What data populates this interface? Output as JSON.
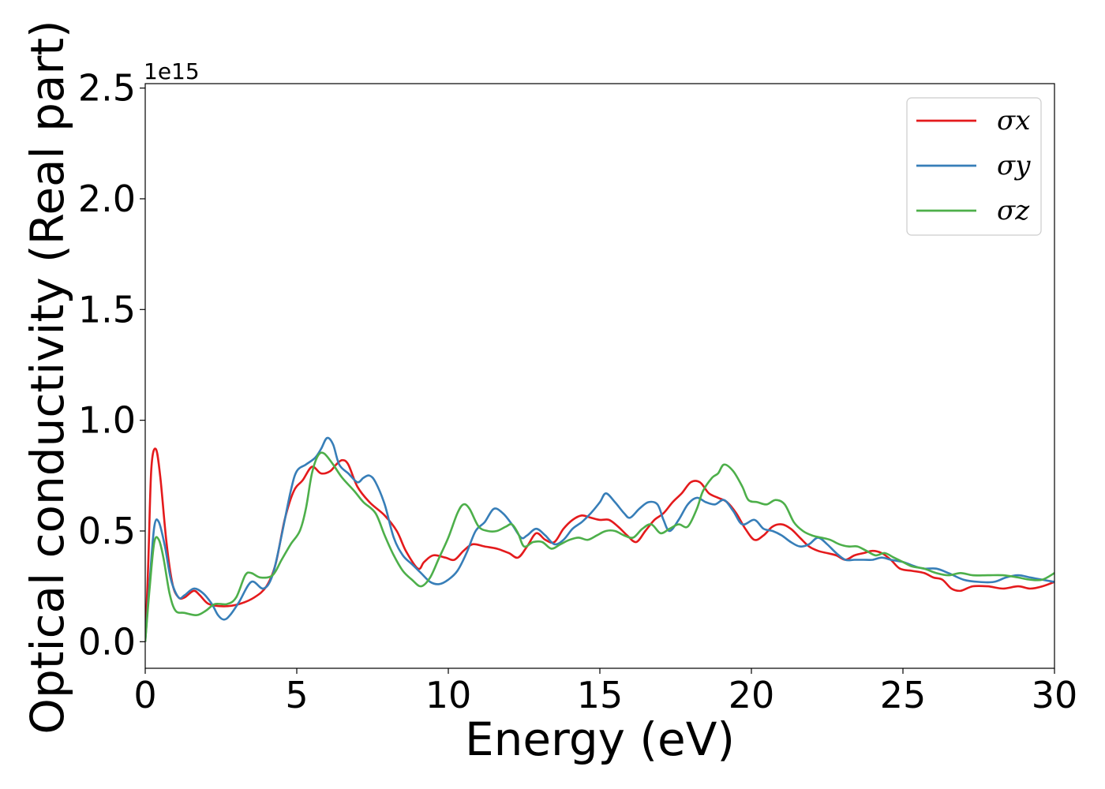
{
  "chart_data": {
    "type": "line",
    "xlabel": "Energy (eV)",
    "ylabel": "Optical conductivity (Real part)",
    "y_offset_label": "1e15",
    "xlim": [
      0,
      30
    ],
    "ylim": [
      -0.12,
      2.52
    ],
    "x_ticks": [
      0,
      5,
      10,
      15,
      20,
      25,
      30
    ],
    "x_tick_labels": [
      "0",
      "5",
      "10",
      "15",
      "20",
      "25",
      "30"
    ],
    "y_ticks": [
      0.0,
      0.5,
      1.0,
      1.5,
      2.0,
      2.5
    ],
    "y_tick_labels": [
      "0.0",
      "0.5",
      "1.0",
      "1.5",
      "2.0",
      "2.5"
    ],
    "grid": false,
    "legend_position": "top-right",
    "series": [
      {
        "name": "σx",
        "color": "#e41a1c",
        "points": [
          [
            0,
            0
          ],
          [
            0.1,
            0.35
          ],
          [
            0.2,
            0.78
          ],
          [
            0.35,
            0.87
          ],
          [
            0.5,
            0.74
          ],
          [
            0.7,
            0.45
          ],
          [
            0.9,
            0.26
          ],
          [
            1.1,
            0.2
          ],
          [
            1.3,
            0.2
          ],
          [
            1.6,
            0.23
          ],
          [
            1.8,
            0.21
          ],
          [
            2.1,
            0.17
          ],
          [
            2.6,
            0.16
          ],
          [
            3.1,
            0.17
          ],
          [
            3.6,
            0.2
          ],
          [
            4.0,
            0.25
          ],
          [
            4.3,
            0.35
          ],
          [
            4.6,
            0.55
          ],
          [
            4.9,
            0.68
          ],
          [
            5.2,
            0.73
          ],
          [
            5.5,
            0.79
          ],
          [
            5.8,
            0.76
          ],
          [
            6.1,
            0.77
          ],
          [
            6.3,
            0.8
          ],
          [
            6.5,
            0.82
          ],
          [
            6.7,
            0.8
          ],
          [
            7.0,
            0.7
          ],
          [
            7.4,
            0.63
          ],
          [
            7.9,
            0.57
          ],
          [
            8.3,
            0.5
          ],
          [
            8.6,
            0.41
          ],
          [
            9.0,
            0.33
          ],
          [
            9.2,
            0.36
          ],
          [
            9.5,
            0.39
          ],
          [
            9.9,
            0.38
          ],
          [
            10.2,
            0.37
          ],
          [
            10.5,
            0.41
          ],
          [
            10.8,
            0.44
          ],
          [
            11.2,
            0.43
          ],
          [
            11.6,
            0.42
          ],
          [
            12.0,
            0.4
          ],
          [
            12.3,
            0.38
          ],
          [
            12.6,
            0.43
          ],
          [
            12.9,
            0.49
          ],
          [
            13.2,
            0.46
          ],
          [
            13.5,
            0.45
          ],
          [
            13.8,
            0.51
          ],
          [
            14.1,
            0.55
          ],
          [
            14.4,
            0.57
          ],
          [
            14.7,
            0.56
          ],
          [
            15.0,
            0.55
          ],
          [
            15.3,
            0.55
          ],
          [
            15.6,
            0.52
          ],
          [
            15.9,
            0.48
          ],
          [
            16.2,
            0.45
          ],
          [
            16.5,
            0.5
          ],
          [
            16.8,
            0.55
          ],
          [
            17.1,
            0.58
          ],
          [
            17.4,
            0.63
          ],
          [
            17.7,
            0.67
          ],
          [
            18.0,
            0.72
          ],
          [
            18.3,
            0.72
          ],
          [
            18.6,
            0.67
          ],
          [
            18.9,
            0.65
          ],
          [
            19.2,
            0.63
          ],
          [
            19.5,
            0.58
          ],
          [
            19.8,
            0.51
          ],
          [
            20.1,
            0.46
          ],
          [
            20.4,
            0.48
          ],
          [
            20.7,
            0.52
          ],
          [
            21.0,
            0.53
          ],
          [
            21.3,
            0.51
          ],
          [
            21.6,
            0.47
          ],
          [
            21.9,
            0.43
          ],
          [
            22.2,
            0.41
          ],
          [
            22.5,
            0.4
          ],
          [
            22.8,
            0.39
          ],
          [
            23.1,
            0.37
          ],
          [
            23.4,
            0.39
          ],
          [
            23.7,
            0.4
          ],
          [
            24.0,
            0.41
          ],
          [
            24.3,
            0.4
          ],
          [
            24.6,
            0.37
          ],
          [
            24.9,
            0.33
          ],
          [
            25.3,
            0.32
          ],
          [
            25.7,
            0.31
          ],
          [
            26.0,
            0.29
          ],
          [
            26.3,
            0.28
          ],
          [
            26.6,
            0.24
          ],
          [
            26.9,
            0.23
          ],
          [
            27.3,
            0.25
          ],
          [
            27.8,
            0.25
          ],
          [
            28.3,
            0.24
          ],
          [
            28.8,
            0.25
          ],
          [
            29.2,
            0.24
          ],
          [
            29.6,
            0.25
          ],
          [
            30.0,
            0.27
          ]
        ]
      },
      {
        "name": "σy",
        "color": "#377eb8",
        "points": [
          [
            0,
            0
          ],
          [
            0.15,
            0.28
          ],
          [
            0.3,
            0.52
          ],
          [
            0.45,
            0.54
          ],
          [
            0.65,
            0.43
          ],
          [
            0.85,
            0.28
          ],
          [
            1.1,
            0.2
          ],
          [
            1.3,
            0.21
          ],
          [
            1.6,
            0.24
          ],
          [
            1.9,
            0.22
          ],
          [
            2.2,
            0.17
          ],
          [
            2.4,
            0.12
          ],
          [
            2.6,
            0.1
          ],
          [
            2.8,
            0.12
          ],
          [
            3.1,
            0.18
          ],
          [
            3.5,
            0.27
          ],
          [
            3.9,
            0.24
          ],
          [
            4.2,
            0.3
          ],
          [
            4.5,
            0.48
          ],
          [
            4.8,
            0.68
          ],
          [
            5.0,
            0.77
          ],
          [
            5.3,
            0.8
          ],
          [
            5.6,
            0.83
          ],
          [
            5.8,
            0.87
          ],
          [
            6.0,
            0.92
          ],
          [
            6.2,
            0.89
          ],
          [
            6.4,
            0.8
          ],
          [
            6.7,
            0.76
          ],
          [
            7.0,
            0.72
          ],
          [
            7.2,
            0.74
          ],
          [
            7.4,
            0.75
          ],
          [
            7.6,
            0.72
          ],
          [
            7.9,
            0.62
          ],
          [
            8.2,
            0.47
          ],
          [
            8.5,
            0.39
          ],
          [
            8.8,
            0.35
          ],
          [
            9.1,
            0.31
          ],
          [
            9.4,
            0.27
          ],
          [
            9.7,
            0.26
          ],
          [
            10.0,
            0.28
          ],
          [
            10.3,
            0.32
          ],
          [
            10.6,
            0.4
          ],
          [
            10.9,
            0.5
          ],
          [
            11.2,
            0.54
          ],
          [
            11.5,
            0.6
          ],
          [
            11.8,
            0.58
          ],
          [
            12.1,
            0.53
          ],
          [
            12.4,
            0.47
          ],
          [
            12.6,
            0.48
          ],
          [
            12.9,
            0.51
          ],
          [
            13.2,
            0.48
          ],
          [
            13.5,
            0.44
          ],
          [
            13.8,
            0.46
          ],
          [
            14.1,
            0.51
          ],
          [
            14.4,
            0.54
          ],
          [
            14.7,
            0.58
          ],
          [
            15.0,
            0.63
          ],
          [
            15.2,
            0.67
          ],
          [
            15.5,
            0.63
          ],
          [
            15.8,
            0.58
          ],
          [
            16.0,
            0.56
          ],
          [
            16.3,
            0.6
          ],
          [
            16.6,
            0.63
          ],
          [
            16.9,
            0.62
          ],
          [
            17.1,
            0.55
          ],
          [
            17.3,
            0.5
          ],
          [
            17.6,
            0.55
          ],
          [
            17.9,
            0.62
          ],
          [
            18.2,
            0.65
          ],
          [
            18.5,
            0.63
          ],
          [
            18.8,
            0.62
          ],
          [
            19.1,
            0.64
          ],
          [
            19.4,
            0.59
          ],
          [
            19.7,
            0.53
          ],
          [
            20.1,
            0.55
          ],
          [
            20.4,
            0.51
          ],
          [
            20.7,
            0.5
          ],
          [
            21.0,
            0.48
          ],
          [
            21.3,
            0.45
          ],
          [
            21.6,
            0.43
          ],
          [
            21.9,
            0.44
          ],
          [
            22.2,
            0.47
          ],
          [
            22.5,
            0.44
          ],
          [
            22.8,
            0.4
          ],
          [
            23.1,
            0.37
          ],
          [
            23.4,
            0.37
          ],
          [
            23.7,
            0.37
          ],
          [
            24.0,
            0.37
          ],
          [
            24.3,
            0.38
          ],
          [
            24.6,
            0.37
          ],
          [
            25.0,
            0.36
          ],
          [
            25.4,
            0.34
          ],
          [
            25.7,
            0.33
          ],
          [
            26.1,
            0.33
          ],
          [
            26.5,
            0.31
          ],
          [
            27.0,
            0.28
          ],
          [
            27.5,
            0.27
          ],
          [
            28.0,
            0.27
          ],
          [
            28.4,
            0.29
          ],
          [
            28.8,
            0.3
          ],
          [
            29.2,
            0.29
          ],
          [
            29.6,
            0.28
          ],
          [
            30.0,
            0.27
          ]
        ]
      },
      {
        "name": "σz",
        "color": "#4daf4a",
        "points": [
          [
            0,
            0
          ],
          [
            0.15,
            0.25
          ],
          [
            0.3,
            0.45
          ],
          [
            0.45,
            0.46
          ],
          [
            0.6,
            0.38
          ],
          [
            0.8,
            0.22
          ],
          [
            1.0,
            0.14
          ],
          [
            1.3,
            0.13
          ],
          [
            1.7,
            0.12
          ],
          [
            2.0,
            0.14
          ],
          [
            2.3,
            0.17
          ],
          [
            2.7,
            0.17
          ],
          [
            3.0,
            0.2
          ],
          [
            3.3,
            0.3
          ],
          [
            3.5,
            0.31
          ],
          [
            3.8,
            0.29
          ],
          [
            4.2,
            0.3
          ],
          [
            4.5,
            0.37
          ],
          [
            4.8,
            0.44
          ],
          [
            5.1,
            0.5
          ],
          [
            5.3,
            0.6
          ],
          [
            5.5,
            0.76
          ],
          [
            5.7,
            0.84
          ],
          [
            5.9,
            0.85
          ],
          [
            6.2,
            0.8
          ],
          [
            6.5,
            0.74
          ],
          [
            6.9,
            0.68
          ],
          [
            7.2,
            0.63
          ],
          [
            7.6,
            0.58
          ],
          [
            7.9,
            0.48
          ],
          [
            8.2,
            0.39
          ],
          [
            8.5,
            0.32
          ],
          [
            8.8,
            0.28
          ],
          [
            9.1,
            0.25
          ],
          [
            9.4,
            0.29
          ],
          [
            9.7,
            0.38
          ],
          [
            10.0,
            0.47
          ],
          [
            10.3,
            0.58
          ],
          [
            10.5,
            0.62
          ],
          [
            10.7,
            0.6
          ],
          [
            11.0,
            0.52
          ],
          [
            11.3,
            0.5
          ],
          [
            11.6,
            0.5
          ],
          [
            11.9,
            0.52
          ],
          [
            12.1,
            0.53
          ],
          [
            12.3,
            0.49
          ],
          [
            12.5,
            0.43
          ],
          [
            12.8,
            0.45
          ],
          [
            13.1,
            0.45
          ],
          [
            13.4,
            0.42
          ],
          [
            13.7,
            0.44
          ],
          [
            14.0,
            0.46
          ],
          [
            14.3,
            0.47
          ],
          [
            14.6,
            0.46
          ],
          [
            14.9,
            0.48
          ],
          [
            15.2,
            0.5
          ],
          [
            15.5,
            0.5
          ],
          [
            15.8,
            0.48
          ],
          [
            16.1,
            0.47
          ],
          [
            16.4,
            0.51
          ],
          [
            16.7,
            0.53
          ],
          [
            17.0,
            0.49
          ],
          [
            17.3,
            0.51
          ],
          [
            17.6,
            0.53
          ],
          [
            17.9,
            0.52
          ],
          [
            18.2,
            0.6
          ],
          [
            18.4,
            0.68
          ],
          [
            18.7,
            0.74
          ],
          [
            18.9,
            0.76
          ],
          [
            19.1,
            0.8
          ],
          [
            19.4,
            0.77
          ],
          [
            19.7,
            0.7
          ],
          [
            19.9,
            0.64
          ],
          [
            20.2,
            0.63
          ],
          [
            20.5,
            0.62
          ],
          [
            20.8,
            0.64
          ],
          [
            21.1,
            0.62
          ],
          [
            21.4,
            0.54
          ],
          [
            21.7,
            0.5
          ],
          [
            22.0,
            0.48
          ],
          [
            22.3,
            0.47
          ],
          [
            22.6,
            0.46
          ],
          [
            22.9,
            0.44
          ],
          [
            23.2,
            0.43
          ],
          [
            23.5,
            0.43
          ],
          [
            23.8,
            0.41
          ],
          [
            24.1,
            0.39
          ],
          [
            24.4,
            0.4
          ],
          [
            24.7,
            0.38
          ],
          [
            25.0,
            0.36
          ],
          [
            25.3,
            0.34
          ],
          [
            25.7,
            0.33
          ],
          [
            26.1,
            0.31
          ],
          [
            26.5,
            0.3
          ],
          [
            26.9,
            0.31
          ],
          [
            27.3,
            0.3
          ],
          [
            27.8,
            0.3
          ],
          [
            28.3,
            0.3
          ],
          [
            28.8,
            0.29
          ],
          [
            29.2,
            0.28
          ],
          [
            29.6,
            0.28
          ],
          [
            30.0,
            0.31
          ]
        ]
      }
    ]
  }
}
